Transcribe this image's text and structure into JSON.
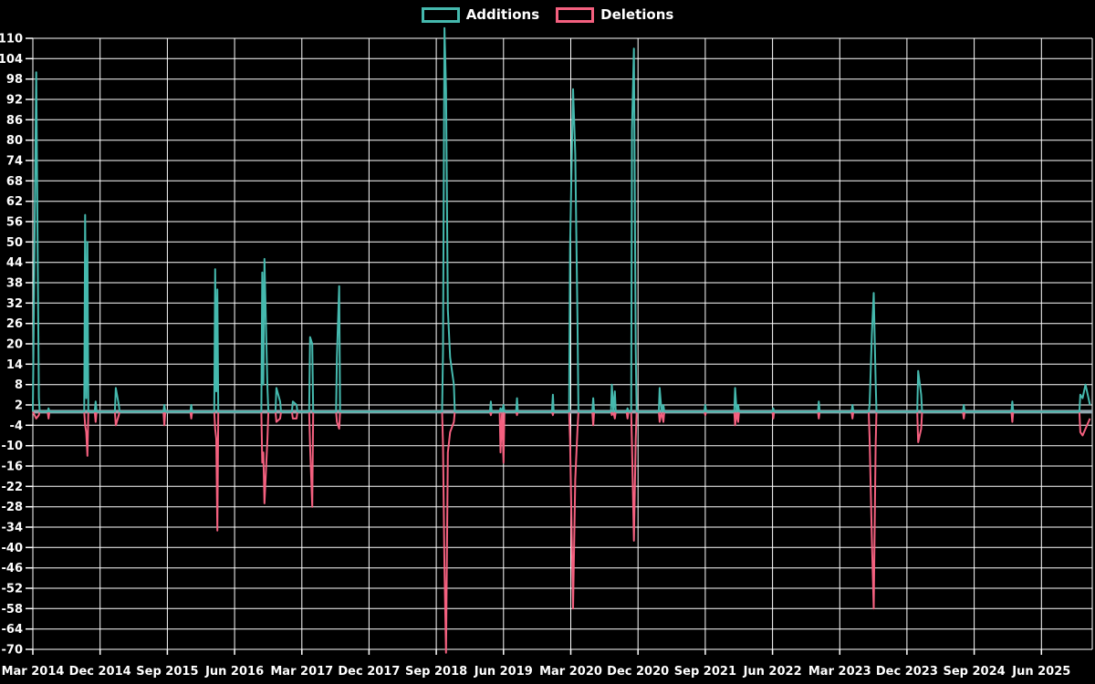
{
  "legend": {
    "additions_label": "Additions",
    "deletions_label": "Deletions"
  },
  "colors": {
    "additions": "#45b9ae",
    "deletions": "#f4607f",
    "zero_line": "#92a8b0",
    "grid": "#ffffff",
    "text": "#ffffff",
    "background": "#000000"
  },
  "chart_data": {
    "type": "line",
    "title": "",
    "series_names": [
      "Additions",
      "Deletions"
    ],
    "legend_position": "top-center",
    "grid": true,
    "x_unit": "months since Mar 2014 (weekly additions/deletions spikes)",
    "x_min": 0,
    "x_max": 141.8,
    "y_min": -70,
    "y_max": 110,
    "y_step": 6,
    "y_ticks": [
      110,
      104,
      98,
      92,
      86,
      80,
      74,
      68,
      62,
      56,
      50,
      44,
      38,
      32,
      26,
      20,
      14,
      8,
      2,
      -4,
      -10,
      -16,
      -22,
      -28,
      -34,
      -40,
      -46,
      -52,
      -58,
      -64,
      -70
    ],
    "x_ticks": [
      {
        "label": "Mar 2014",
        "m": 0
      },
      {
        "label": "Dec 2014",
        "m": 9
      },
      {
        "label": "Sep 2015",
        "m": 18
      },
      {
        "label": "Jun 2016",
        "m": 27
      },
      {
        "label": "Mar 2017",
        "m": 36
      },
      {
        "label": "Dec 2017",
        "m": 45
      },
      {
        "label": "Sep 2018",
        "m": 54
      },
      {
        "label": "Jun 2019",
        "m": 63
      },
      {
        "label": "Mar 2020",
        "m": 72
      },
      {
        "label": "Dec 2020",
        "m": 81
      },
      {
        "label": "Sep 2021",
        "m": 90
      },
      {
        "label": "Jun 2022",
        "m": 99
      },
      {
        "label": "Mar 2023",
        "m": 108
      },
      {
        "label": "Dec 2023",
        "m": 117
      },
      {
        "label": "Sep 2024",
        "m": 126
      },
      {
        "label": "Jun 2025",
        "m": 135
      }
    ],
    "points_format": "[x_months, additions, deletions]",
    "points": [
      [
        0,
        0,
        0
      ],
      [
        0.45,
        100,
        -2
      ],
      [
        0.8,
        4,
        -1
      ],
      [
        2.1,
        1,
        -2
      ],
      [
        7.0,
        58,
        -4
      ],
      [
        7.15,
        4,
        -6
      ],
      [
        7.3,
        50,
        -13
      ],
      [
        8.4,
        3,
        -3
      ],
      [
        11.1,
        7,
        -4
      ],
      [
        11.5,
        2,
        -1
      ],
      [
        17.6,
        2,
        -4
      ],
      [
        21.2,
        2,
        -2
      ],
      [
        24.4,
        42,
        -5
      ],
      [
        24.55,
        6,
        -8
      ],
      [
        24.7,
        36,
        -35
      ],
      [
        30.7,
        41,
        -15
      ],
      [
        30.85,
        8,
        -12
      ],
      [
        31.0,
        45,
        -27
      ],
      [
        31.4,
        7,
        -8
      ],
      [
        32.6,
        7,
        -3
      ],
      [
        33.1,
        3,
        -2
      ],
      [
        34.8,
        3,
        -2
      ],
      [
        35.3,
        2,
        -2
      ],
      [
        37.1,
        22,
        -10
      ],
      [
        37.4,
        20,
        -28
      ],
      [
        40.7,
        16,
        -3
      ],
      [
        41.0,
        37,
        -5
      ],
      [
        54.9,
        18,
        -10
      ],
      [
        55.1,
        113,
        -46
      ],
      [
        55.3,
        95,
        -71
      ],
      [
        55.55,
        30,
        -12
      ],
      [
        55.85,
        16,
        -6
      ],
      [
        56.35,
        8,
        -3
      ],
      [
        61.3,
        3,
        -1
      ],
      [
        62.6,
        1,
        -12
      ],
      [
        62.8,
        0,
        0
      ],
      [
        63.0,
        2,
        -15
      ],
      [
        64.8,
        4,
        -1
      ],
      [
        69.6,
        5,
        -1
      ],
      [
        71.9,
        48,
        -8
      ],
      [
        72.3,
        95,
        -58
      ],
      [
        72.6,
        76,
        -20
      ],
      [
        72.9,
        26,
        -5
      ],
      [
        75.0,
        4,
        -4
      ],
      [
        77.5,
        8,
        -1
      ],
      [
        77.7,
        0,
        0
      ],
      [
        77.9,
        6,
        -2
      ],
      [
        79.6,
        1,
        -2
      ],
      [
        80.2,
        83,
        -10
      ],
      [
        80.45,
        107,
        -38
      ],
      [
        80.7,
        18,
        -8
      ],
      [
        83.9,
        7,
        -3
      ],
      [
        84.15,
        0,
        0
      ],
      [
        84.4,
        2,
        -3
      ],
      [
        90.0,
        2,
        -1
      ],
      [
        94.0,
        7,
        -4
      ],
      [
        94.2,
        0,
        0
      ],
      [
        94.4,
        2,
        -3
      ],
      [
        99.1,
        1,
        -2
      ],
      [
        105.2,
        3,
        -2
      ],
      [
        109.7,
        2,
        -2
      ],
      [
        112.0,
        2,
        -8
      ],
      [
        112.3,
        23,
        -38
      ],
      [
        112.55,
        35,
        -58
      ],
      [
        112.8,
        9,
        -10
      ],
      [
        118.5,
        12,
        -9
      ],
      [
        118.9,
        5,
        -5
      ],
      [
        124.6,
        2,
        -2
      ],
      [
        131.1,
        3,
        -3
      ],
      [
        140.2,
        5,
        -6
      ],
      [
        140.5,
        4,
        -7
      ],
      [
        140.9,
        8,
        -5
      ],
      [
        141.5,
        2,
        -2
      ]
    ]
  }
}
